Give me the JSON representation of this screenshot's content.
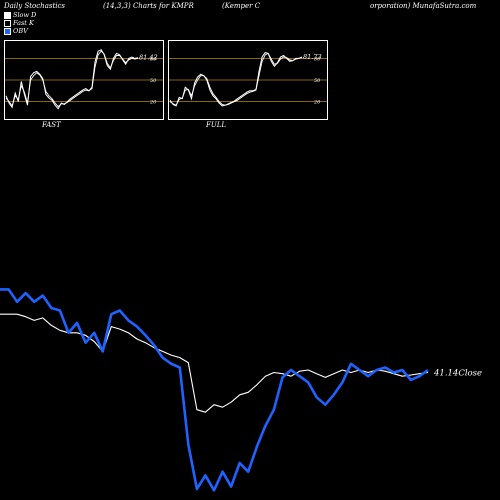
{
  "header": {
    "left": "Daily Stochastics",
    "middle": "(14,3,3) Charts for KMPR",
    "right_a": "(Kemper C",
    "right_b": "orporation) MunafaSutra.com"
  },
  "legend": [
    {
      "label": "Slow  D",
      "color": "#ffffff"
    },
    {
      "label": "Fast K",
      "color": "#ffffff"
    },
    {
      "label": "OBV",
      "color": "#1e63ff"
    }
  ],
  "panels": {
    "fast": {
      "label": "FAST",
      "value": "81.42"
    },
    "full": {
      "label": "FULL",
      "value": "81.73"
    }
  },
  "colors": {
    "background": "#000000",
    "obv": "#1e63ff",
    "price": "#ffffff",
    "band": "#b8860b",
    "panel_border": "#ffffff"
  },
  "chart_data": [
    {
      "type": "line",
      "title": "FAST",
      "ylim": [
        0,
        100
      ],
      "bands": [
        80,
        50,
        20
      ],
      "tick_labels": [
        "80",
        "50",
        "20"
      ],
      "series": [
        {
          "values": [
            28,
            18,
            12,
            32,
            20,
            48,
            30,
            15,
            55,
            60,
            62,
            58,
            52,
            30,
            25,
            22,
            15,
            10,
            18,
            16,
            20,
            24,
            27,
            30,
            33,
            36,
            38,
            35,
            40,
            75,
            90,
            92,
            85,
            70,
            65,
            80,
            87,
            85,
            78,
            72,
            80,
            82,
            80,
            81
          ]
        },
        {
          "values": [
            25,
            20,
            14,
            28,
            23,
            42,
            33,
            18,
            50,
            56,
            60,
            57,
            50,
            34,
            28,
            24,
            18,
            13,
            17,
            17,
            19,
            22,
            25,
            28,
            31,
            34,
            36,
            35,
            38,
            68,
            85,
            90,
            86,
            73,
            67,
            77,
            84,
            84,
            79,
            74,
            78,
            80,
            79,
            80
          ]
        }
      ]
    },
    {
      "type": "line",
      "title": "FULL",
      "ylim": [
        0,
        100
      ],
      "bands": [
        80,
        50,
        20
      ],
      "tick_labels": [
        "80",
        "50",
        "20"
      ],
      "series": [
        {
          "values": [
            22,
            16,
            14,
            26,
            24,
            40,
            36,
            24,
            46,
            54,
            58,
            56,
            50,
            36,
            28,
            24,
            18,
            14,
            15,
            17,
            19,
            21,
            24,
            27,
            30,
            33,
            35,
            35,
            37,
            62,
            82,
            88,
            87,
            76,
            69,
            74,
            82,
            84,
            80,
            76,
            77,
            80,
            80,
            82
          ]
        },
        {
          "values": [
            20,
            17,
            15,
            23,
            25,
            36,
            37,
            28,
            42,
            50,
            56,
            56,
            52,
            40,
            31,
            26,
            20,
            16,
            15,
            16,
            18,
            20,
            22,
            25,
            28,
            31,
            33,
            34,
            36,
            56,
            76,
            85,
            87,
            79,
            72,
            73,
            79,
            82,
            81,
            78,
            77,
            79,
            80,
            81
          ]
        }
      ]
    },
    {
      "type": "line",
      "title": "",
      "annotation": "41.14Close",
      "series": [
        {
          "name": "OBV",
          "values": [
            65,
            65,
            55,
            62,
            55,
            60,
            50,
            48,
            30,
            38,
            22,
            30,
            15,
            45,
            48,
            40,
            35,
            28,
            20,
            10,
            5,
            2,
            -60,
            -96,
            -85,
            -97,
            -82,
            -94,
            -75,
            -82,
            -62,
            -45,
            -32,
            -6,
            0,
            -5,
            -10,
            -22,
            -28,
            -20,
            -10,
            5,
            0,
            -5,
            0,
            2,
            -2,
            0,
            -8,
            -5,
            0
          ]
        },
        {
          "name": "Price",
          "values": [
            45,
            45,
            45,
            43,
            40,
            42,
            36,
            32,
            30,
            30,
            28,
            23,
            15,
            35,
            33,
            30,
            25,
            22,
            18,
            15,
            12,
            10,
            6,
            -32,
            -34,
            -28,
            -30,
            -26,
            -20,
            -18,
            -12,
            -5,
            -2,
            -3,
            -5,
            -1,
            0,
            -3,
            -6,
            -3,
            0,
            -2,
            0,
            -2,
            0,
            -1,
            -3,
            -5,
            -4,
            -3,
            -2
          ]
        }
      ]
    }
  ]
}
